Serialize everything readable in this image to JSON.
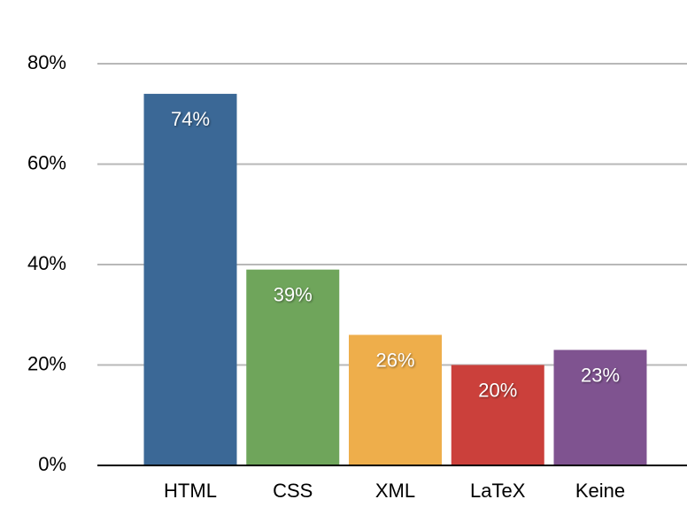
{
  "chart_data": {
    "type": "bar",
    "categories": [
      "HTML",
      "CSS",
      "XML",
      "LaTeX",
      "Keine"
    ],
    "values": [
      74,
      39,
      26,
      20,
      23
    ],
    "value_labels": [
      "74%",
      "39%",
      "26%",
      "20%",
      "23%"
    ],
    "colors": [
      "#3b6896",
      "#6fa55b",
      "#eeae4b",
      "#cb403b",
      "#7f5390"
    ],
    "ylim": [
      0,
      80
    ],
    "yticks": [
      {
        "value": 0,
        "label": "0%"
      },
      {
        "value": 20,
        "label": "20%"
      },
      {
        "value": 40,
        "label": "40%"
      },
      {
        "value": 60,
        "label": "60%"
      },
      {
        "value": 80,
        "label": "80%"
      }
    ],
    "grid": true
  }
}
